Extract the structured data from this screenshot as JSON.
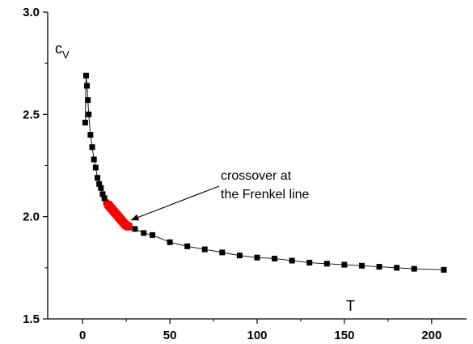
{
  "chart_data": {
    "type": "scatter",
    "xlabel": "T",
    "ylabel": {
      "base": "c",
      "sub": "V"
    },
    "xlim": [
      -20,
      220
    ],
    "ylim": [
      1.5,
      3.0
    ],
    "xticks": [
      0,
      50,
      100,
      150,
      200
    ],
    "xtick_labels": [
      "0",
      "50",
      "100",
      "150",
      "200"
    ],
    "yticks": [
      1.5,
      2.0,
      2.5,
      3.0
    ],
    "ytick_labels": [
      "1.5",
      "2.0",
      "2.5",
      "3.0"
    ],
    "grid": false,
    "annotation": {
      "lines": [
        "crossover at",
        "the Frenkel line"
      ],
      "arrow_target": {
        "x": 27,
        "y": 1.98
      }
    },
    "series": [
      {
        "marker": "square",
        "color": "#000000",
        "connected": true,
        "points": [
          [
            1.5,
            2.46
          ],
          [
            2.0,
            2.69
          ],
          [
            2.5,
            2.64
          ],
          [
            3.0,
            2.57
          ],
          [
            3.5,
            2.5
          ],
          [
            4.5,
            2.4
          ],
          [
            5.5,
            2.34
          ],
          [
            6.5,
            2.28
          ],
          [
            7.5,
            2.24
          ],
          [
            8.5,
            2.19
          ],
          [
            9.5,
            2.16
          ],
          [
            10.5,
            2.14
          ],
          [
            11.5,
            2.11
          ],
          [
            12.5,
            2.09
          ],
          [
            13.5,
            2.07
          ],
          [
            14.5,
            2.06
          ],
          [
            15.5,
            2.05
          ],
          [
            16.5,
            2.04
          ],
          [
            17.5,
            2.03
          ],
          [
            18.5,
            2.02
          ],
          [
            19.5,
            2.01
          ],
          [
            20.5,
            2.0
          ],
          [
            21.5,
            1.99
          ],
          [
            22.5,
            1.98
          ],
          [
            23.5,
            1.97
          ],
          [
            24.5,
            1.96
          ],
          [
            25.5,
            1.96
          ],
          [
            26.5,
            1.95
          ],
          [
            30,
            1.94
          ],
          [
            35,
            1.92
          ],
          [
            40,
            1.91
          ],
          [
            50,
            1.875
          ],
          [
            60,
            1.855
          ],
          [
            70,
            1.84
          ],
          [
            80,
            1.825
          ],
          [
            90,
            1.81
          ],
          [
            100,
            1.8
          ],
          [
            110,
            1.795
          ],
          [
            120,
            1.785
          ],
          [
            130,
            1.775
          ],
          [
            140,
            1.77
          ],
          [
            150,
            1.765
          ],
          [
            160,
            1.76
          ],
          [
            170,
            1.755
          ],
          [
            180,
            1.75
          ],
          [
            190,
            1.745
          ],
          [
            207,
            1.74
          ]
        ]
      },
      {
        "marker": "square",
        "color": "#ff0000",
        "connected": false,
        "points": [
          [
            14.5,
            2.06
          ],
          [
            15.0,
            2.055
          ],
          [
            15.5,
            2.05
          ],
          [
            16.0,
            2.045
          ],
          [
            16.5,
            2.04
          ],
          [
            17.0,
            2.035
          ],
          [
            17.5,
            2.03
          ],
          [
            18.0,
            2.025
          ],
          [
            18.5,
            2.02
          ],
          [
            19.0,
            2.015
          ],
          [
            19.5,
            2.01
          ],
          [
            20.0,
            2.005
          ],
          [
            20.5,
            2.0
          ],
          [
            21.0,
            1.995
          ],
          [
            21.5,
            1.99
          ],
          [
            22.0,
            1.985
          ],
          [
            22.5,
            1.98
          ],
          [
            23.0,
            1.975
          ],
          [
            23.5,
            1.97
          ],
          [
            24.0,
            1.965
          ],
          [
            24.5,
            1.96
          ],
          [
            25.0,
            1.958
          ],
          [
            25.5,
            1.955
          ],
          [
            26.0,
            1.952
          ],
          [
            26.5,
            1.95
          ]
        ]
      }
    ]
  }
}
